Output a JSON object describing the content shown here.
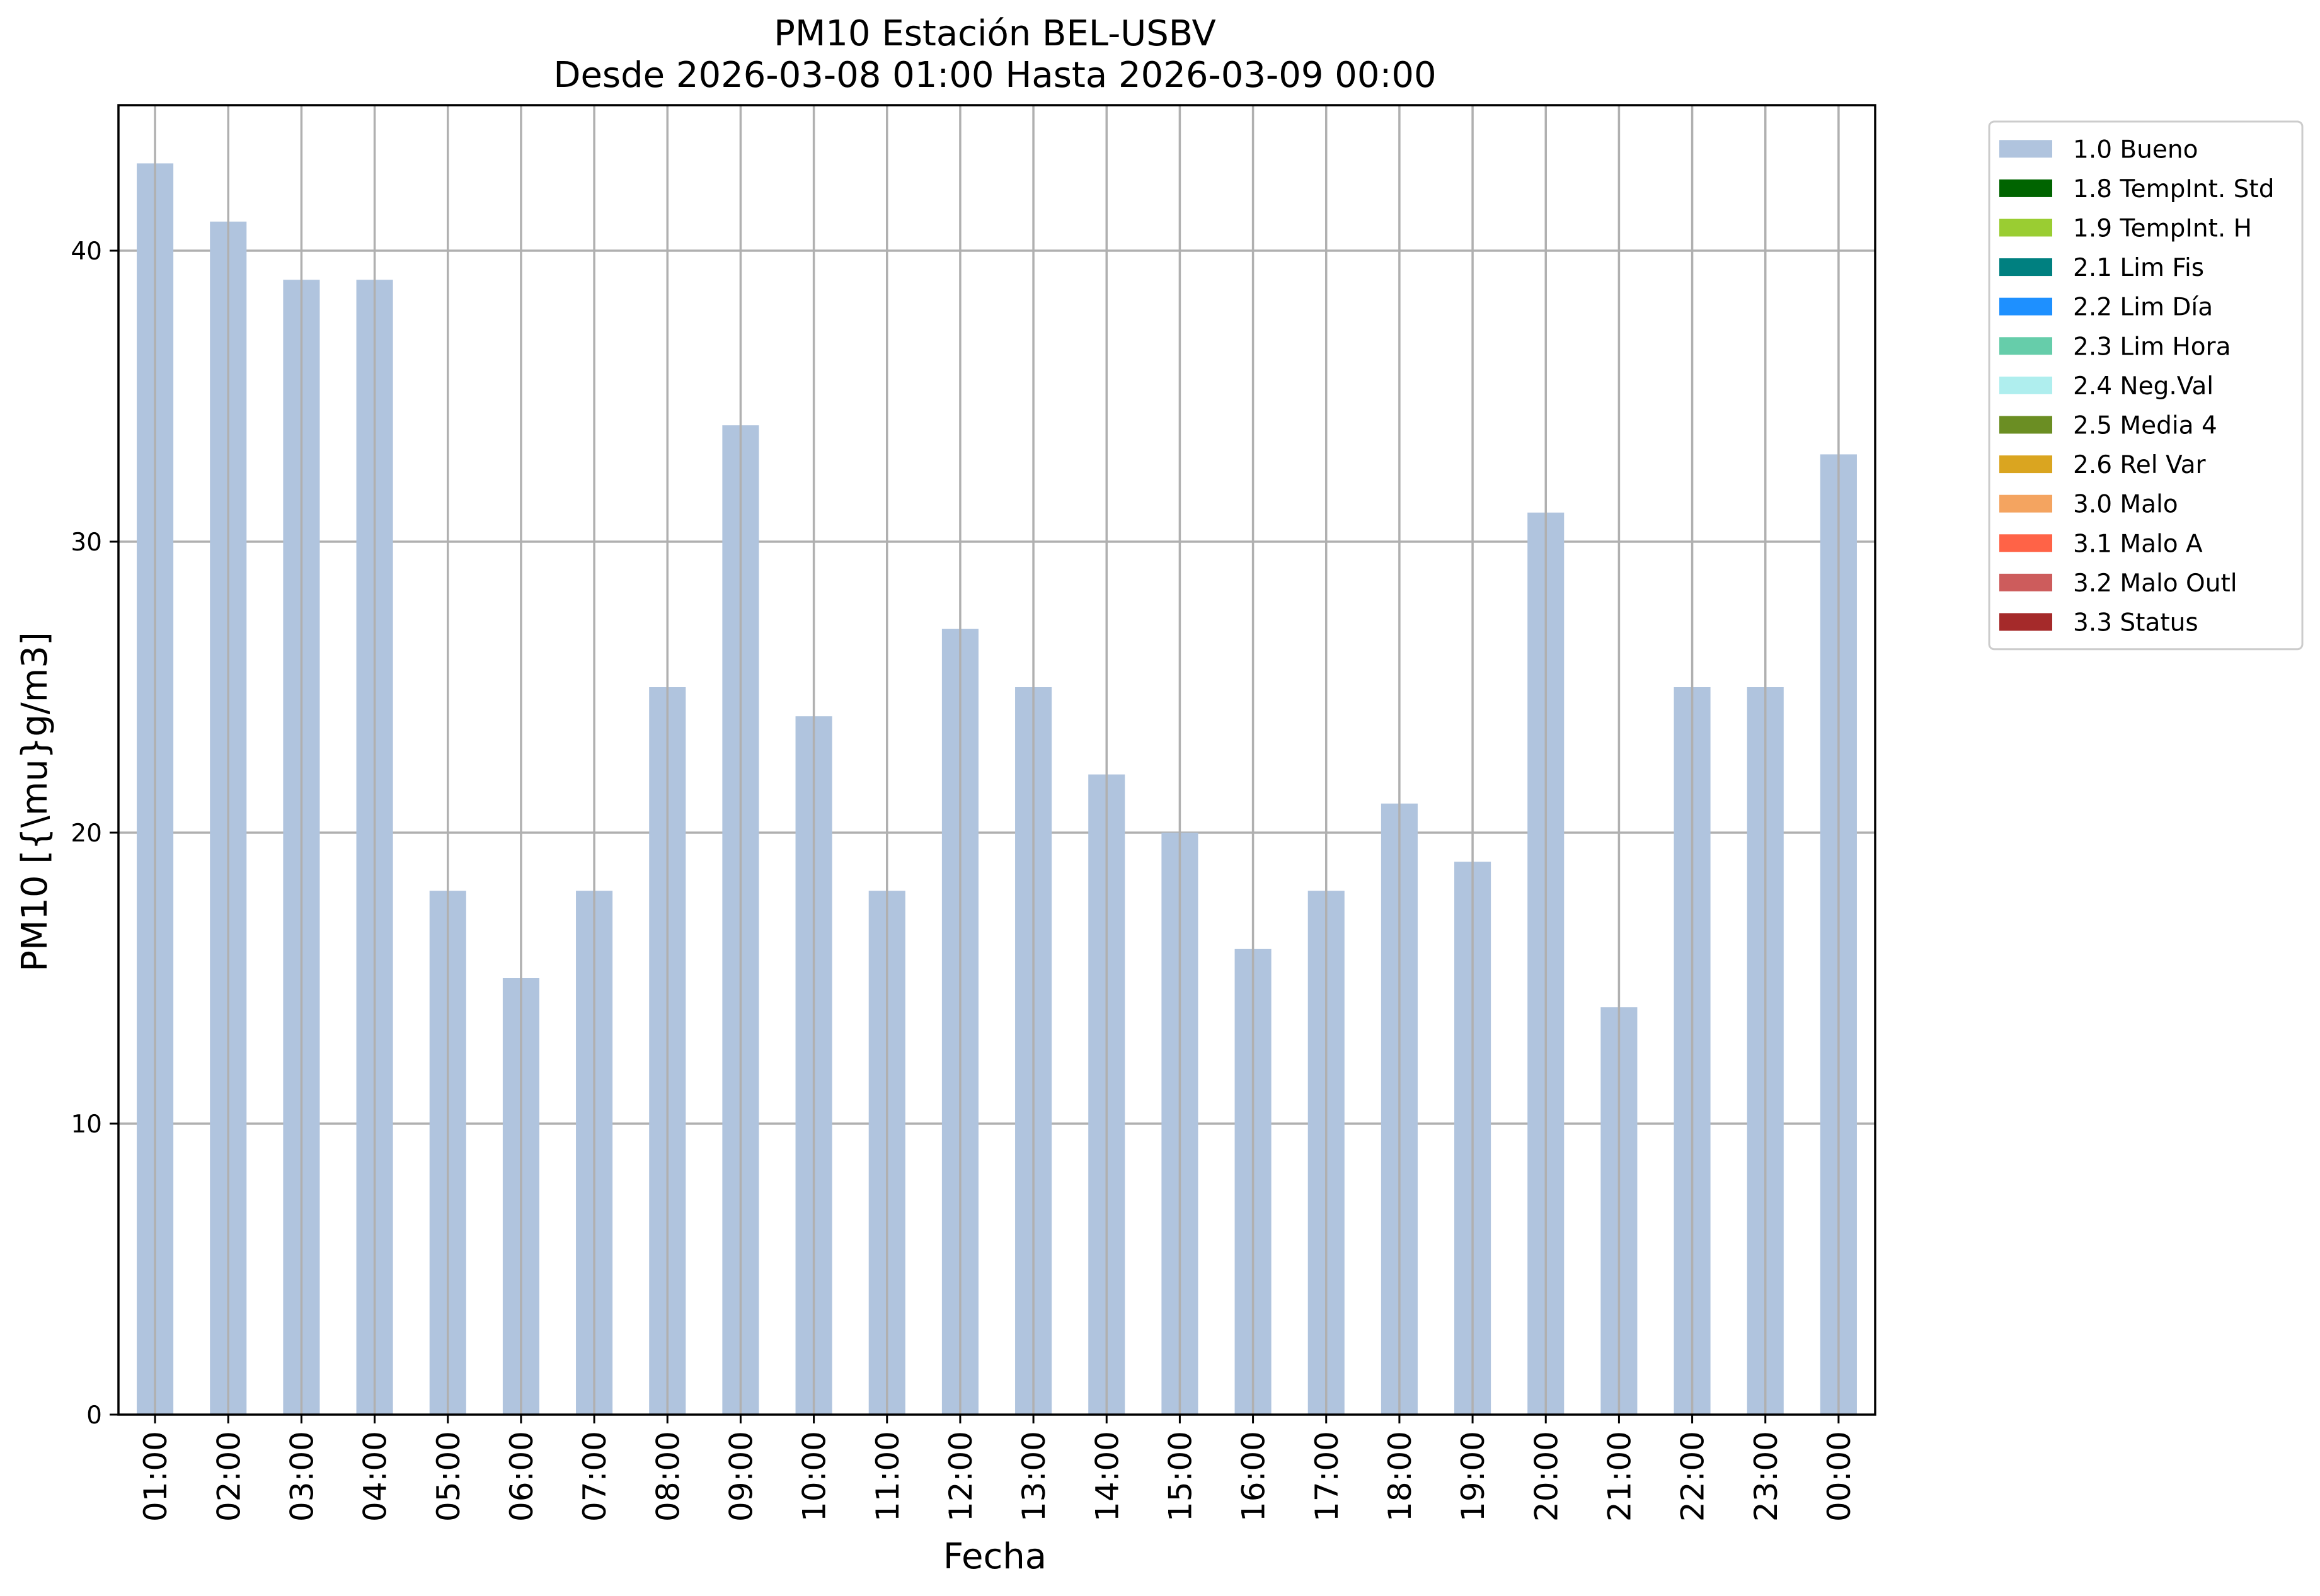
{
  "chart_data": {
    "type": "bar",
    "title": "PM10 Estación BEL-USBV",
    "subtitle": "Desde 2026-03-08 01:00 Hasta 2026-03-09 00:00",
    "xlabel": "Fecha",
    "ylabel": "PM10 [{\\mu}g/m3]",
    "ylim": [
      0,
      45
    ],
    "yticks": [
      0,
      10,
      20,
      30,
      40
    ],
    "grid": true,
    "legend_position": "outside-top-right",
    "categories": [
      "01:00",
      "02:00",
      "03:00",
      "04:00",
      "05:00",
      "06:00",
      "07:00",
      "08:00",
      "09:00",
      "10:00",
      "11:00",
      "12:00",
      "13:00",
      "14:00",
      "15:00",
      "16:00",
      "17:00",
      "18:00",
      "19:00",
      "20:00",
      "21:00",
      "22:00",
      "23:00",
      "00:00"
    ],
    "series": [
      {
        "name": "1.0 Bueno",
        "color": "#b0c4de",
        "values": [
          43,
          41,
          39,
          39,
          18,
          15,
          18,
          25,
          34,
          24,
          18,
          27,
          25,
          22,
          20,
          16,
          18,
          21,
          19,
          31,
          14,
          25,
          25,
          33
        ]
      }
    ],
    "legend": [
      {
        "label": "1.0 Bueno",
        "color": "#b0c4de"
      },
      {
        "label": "1.8 TempInt. Std",
        "color": "#006400"
      },
      {
        "label": "1.9 TempInt. H",
        "color": "#9acd32"
      },
      {
        "label": "2.1 Lim Fis",
        "color": "#008080"
      },
      {
        "label": "2.2 Lim Día",
        "color": "#1e90ff"
      },
      {
        "label": "2.3 Lim Hora",
        "color": "#66cdaa"
      },
      {
        "label": "2.4 Neg.Val",
        "color": "#afeeee"
      },
      {
        "label": "2.5 Media 4",
        "color": "#6b8e23"
      },
      {
        "label": "2.6 Rel Var",
        "color": "#daa520"
      },
      {
        "label": "3.0 Malo",
        "color": "#f4a460"
      },
      {
        "label": "3.1 Malo A",
        "color": "#ff6347"
      },
      {
        "label": "3.2 Malo Outl",
        "color": "#cd5c5c"
      },
      {
        "label": "3.3 Status",
        "color": "#a52a2a"
      }
    ]
  }
}
